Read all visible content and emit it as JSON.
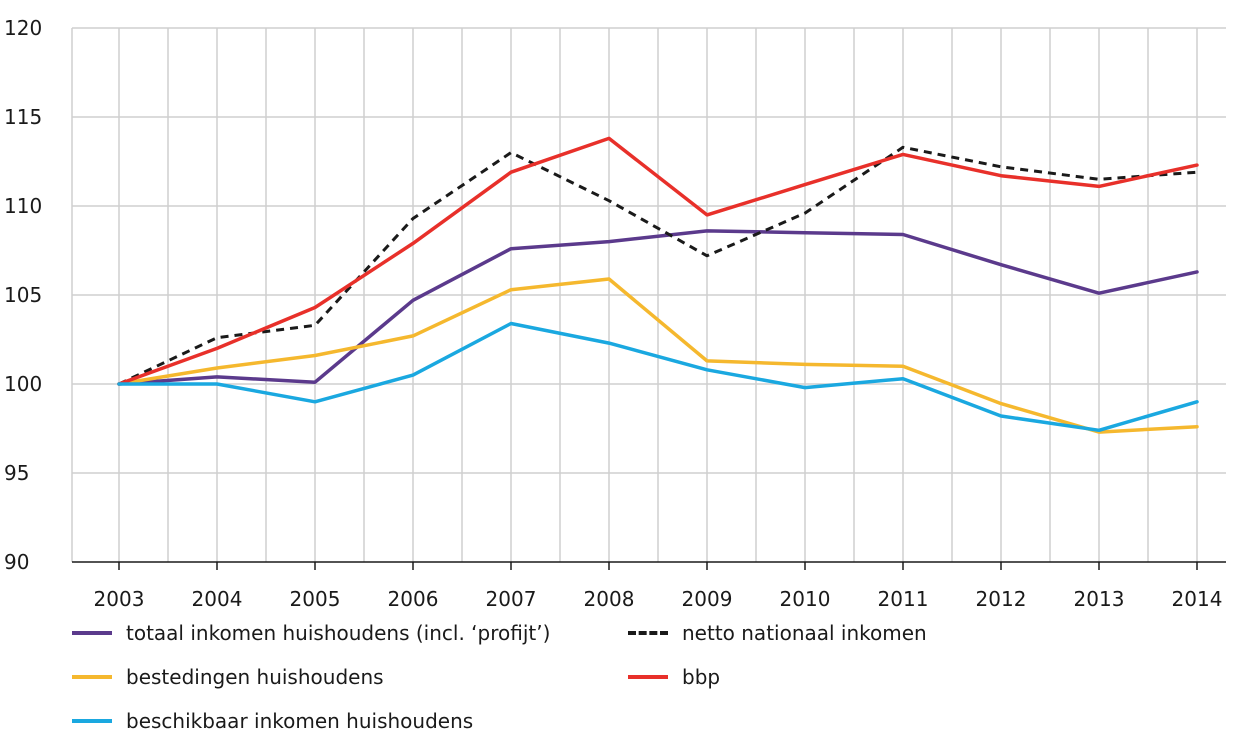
{
  "chart_data": {
    "type": "line",
    "title": "",
    "xlabel": "",
    "ylabel": "",
    "ylim": [
      90,
      120
    ],
    "yticks": [
      90,
      95,
      100,
      105,
      110,
      115,
      120
    ],
    "grid": true,
    "legend_placement": "bottom",
    "x": [
      "2003",
      "2004",
      "2005",
      "2006",
      "2007",
      "2008",
      "2009",
      "2010",
      "2011",
      "2012",
      "2013",
      "2014"
    ],
    "series": [
      {
        "name": "totaal inkomen huishoudens (incl. ‘profijt’)",
        "color": "#5b3a8c",
        "dashed": false,
        "values": [
          100,
          100.4,
          100.1,
          104.7,
          107.6,
          108.0,
          108.6,
          108.5,
          108.4,
          106.7,
          105.1,
          106.3
        ]
      },
      {
        "name": "netto nationaal inkomen",
        "color": "#1a1a1a",
        "dashed": true,
        "values": [
          100,
          102.6,
          103.3,
          109.3,
          113.0,
          110.3,
          107.2,
          109.6,
          113.3,
          112.2,
          111.5,
          111.9
        ]
      },
      {
        "name": "bestedingen huishoudens",
        "color": "#f5b82e",
        "dashed": false,
        "values": [
          100,
          100.9,
          101.6,
          102.7,
          105.3,
          105.9,
          101.3,
          101.1,
          101.0,
          98.9,
          97.3,
          97.6
        ]
      },
      {
        "name": "bbp",
        "color": "#e8302a",
        "dashed": false,
        "values": [
          100,
          102.0,
          104.3,
          107.9,
          111.9,
          113.8,
          109.5,
          111.2,
          112.9,
          111.7,
          111.1,
          112.3
        ]
      },
      {
        "name": "beschikbaar inkomen huishoudens",
        "color": "#1aa8e0",
        "dashed": false,
        "values": [
          100,
          100.0,
          99.0,
          100.5,
          103.4,
          102.3,
          100.8,
          99.8,
          100.3,
          98.2,
          97.4,
          99.0
        ]
      }
    ]
  }
}
